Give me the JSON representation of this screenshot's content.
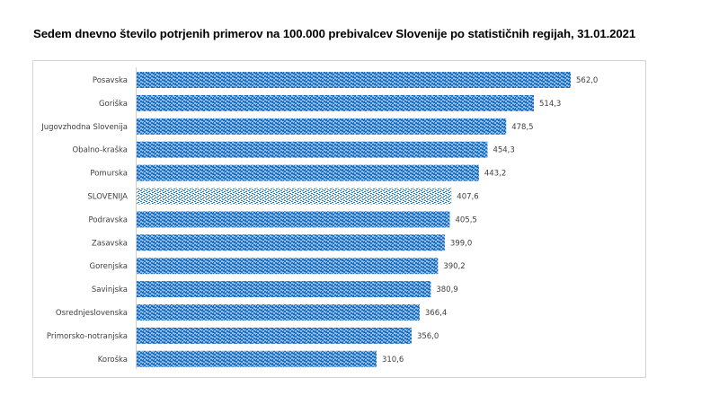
{
  "chart_data": {
    "type": "bar",
    "orientation": "horizontal",
    "title": "Sedem dnevno število potrjenih primerov na 100.000  prebivalcev Slovenije po statističnih regijah, 31.01.2021",
    "xlabel": "",
    "ylabel": "",
    "xlim": [
      0,
      562
    ],
    "grid": false,
    "legend": "none",
    "colors": {
      "bar": "#1f77c8",
      "bar_light": "#8fbde6",
      "highlight": "#1f77c8"
    },
    "categories": [
      "Posavska",
      "Goriška",
      "Jugovzhodna Slovenija",
      "Obalno-kraška",
      "Pomurska",
      "SLOVENIJA",
      "Podravska",
      "Zasavska",
      "Gorenjska",
      "Savinjska",
      "Osrednjeslovenska",
      "Primorsko-notranjska",
      "Koroška"
    ],
    "values": [
      562.0,
      514.3,
      478.5,
      454.3,
      443.2,
      407.6,
      405.5,
      399.0,
      390.2,
      380.9,
      366.4,
      356.0,
      310.6
    ],
    "value_labels": [
      "562,0",
      "514,3",
      "478,5",
      "454,3",
      "443,2",
      "407,6",
      "405,5",
      "399,0",
      "390,2",
      "380,9",
      "366,4",
      "356,0",
      "310,6"
    ],
    "highlighted_category": "SLOVENIJA"
  }
}
